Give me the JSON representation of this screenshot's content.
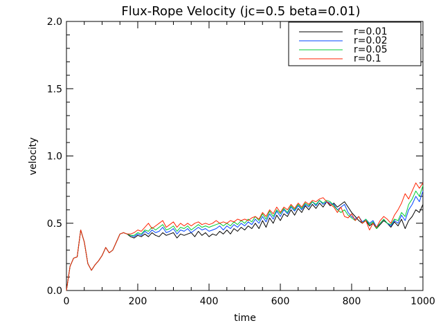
{
  "chart_data": {
    "type": "line",
    "title": "Flux-Rope Velocity (jc=0.5 beta=0.01)",
    "xlabel": "time",
    "ylabel": "velocity",
    "xlim": [
      0,
      1000
    ],
    "ylim": [
      0,
      2
    ],
    "xticks": [
      0,
      200,
      400,
      600,
      800,
      1000
    ],
    "xtick_labels": [
      "0",
      "200",
      "400",
      "600",
      "800",
      "1000"
    ],
    "yticks": [
      0,
      0.5,
      1,
      1.5,
      2
    ],
    "ytick_labels": [
      "0.0",
      "0.5",
      "1.0",
      "1.5",
      "2.0"
    ],
    "grid": false,
    "legend_position": "top-right",
    "x": [
      0,
      10,
      20,
      30,
      40,
      50,
      60,
      70,
      80,
      90,
      100,
      110,
      120,
      130,
      140,
      150,
      160,
      170,
      180,
      190,
      200,
      210,
      220,
      230,
      240,
      250,
      260,
      270,
      280,
      290,
      300,
      310,
      320,
      330,
      340,
      350,
      360,
      370,
      380,
      390,
      400,
      410,
      420,
      430,
      440,
      450,
      460,
      470,
      480,
      490,
      500,
      510,
      520,
      530,
      540,
      550,
      560,
      570,
      580,
      590,
      600,
      610,
      620,
      630,
      640,
      650,
      660,
      670,
      680,
      690,
      700,
      710,
      720,
      730,
      740,
      750,
      760,
      770,
      780,
      790,
      800,
      810,
      820,
      830,
      840,
      850,
      860,
      870,
      880,
      890,
      900,
      910,
      920,
      930,
      940,
      950,
      960,
      970,
      980,
      990,
      1000
    ],
    "series": [
      {
        "name": "r=0.01",
        "color": "#000000",
        "values": [
          0.0,
          0.18,
          0.24,
          0.25,
          0.45,
          0.36,
          0.2,
          0.15,
          0.19,
          0.22,
          0.26,
          0.32,
          0.28,
          0.3,
          0.36,
          0.42,
          0.43,
          0.42,
          0.4,
          0.39,
          0.41,
          0.4,
          0.42,
          0.4,
          0.43,
          0.41,
          0.4,
          0.43,
          0.41,
          0.42,
          0.43,
          0.39,
          0.42,
          0.41,
          0.42,
          0.43,
          0.4,
          0.44,
          0.41,
          0.43,
          0.4,
          0.42,
          0.41,
          0.44,
          0.42,
          0.45,
          0.42,
          0.46,
          0.44,
          0.47,
          0.45,
          0.48,
          0.46,
          0.5,
          0.46,
          0.52,
          0.47,
          0.54,
          0.5,
          0.56,
          0.52,
          0.57,
          0.55,
          0.6,
          0.56,
          0.61,
          0.58,
          0.63,
          0.6,
          0.64,
          0.61,
          0.65,
          0.62,
          0.66,
          0.63,
          0.65,
          0.62,
          0.64,
          0.66,
          0.62,
          0.58,
          0.55,
          0.52,
          0.5,
          0.52,
          0.48,
          0.5,
          0.46,
          0.49,
          0.52,
          0.5,
          0.47,
          0.51,
          0.48,
          0.53,
          0.46,
          0.52,
          0.55,
          0.6,
          0.58,
          0.64
        ]
      },
      {
        "name": "r=0.02",
        "color": "#0044ff",
        "values": [
          0.0,
          0.18,
          0.24,
          0.25,
          0.45,
          0.36,
          0.2,
          0.15,
          0.19,
          0.22,
          0.26,
          0.32,
          0.28,
          0.3,
          0.36,
          0.42,
          0.43,
          0.42,
          0.41,
          0.4,
          0.42,
          0.41,
          0.44,
          0.42,
          0.45,
          0.43,
          0.44,
          0.47,
          0.43,
          0.44,
          0.46,
          0.42,
          0.45,
          0.44,
          0.46,
          0.43,
          0.45,
          0.47,
          0.45,
          0.46,
          0.44,
          0.45,
          0.46,
          0.48,
          0.45,
          0.48,
          0.46,
          0.49,
          0.47,
          0.5,
          0.48,
          0.51,
          0.49,
          0.53,
          0.5,
          0.55,
          0.51,
          0.57,
          0.53,
          0.59,
          0.55,
          0.6,
          0.57,
          0.62,
          0.59,
          0.63,
          0.6,
          0.64,
          0.62,
          0.66,
          0.63,
          0.67,
          0.64,
          0.66,
          0.65,
          0.64,
          0.6,
          0.62,
          0.64,
          0.58,
          0.55,
          0.53,
          0.55,
          0.51,
          0.53,
          0.5,
          0.52,
          0.47,
          0.5,
          0.53,
          0.5,
          0.48,
          0.52,
          0.5,
          0.56,
          0.52,
          0.6,
          0.64,
          0.7,
          0.66,
          0.74
        ]
      },
      {
        "name": "r=0.05",
        "color": "#00cc33",
        "values": [
          0.0,
          0.18,
          0.24,
          0.25,
          0.45,
          0.36,
          0.2,
          0.15,
          0.19,
          0.22,
          0.26,
          0.32,
          0.28,
          0.3,
          0.36,
          0.42,
          0.43,
          0.42,
          0.41,
          0.41,
          0.43,
          0.42,
          0.45,
          0.44,
          0.47,
          0.45,
          0.47,
          0.49,
          0.45,
          0.46,
          0.48,
          0.44,
          0.47,
          0.46,
          0.48,
          0.45,
          0.47,
          0.49,
          0.47,
          0.48,
          0.47,
          0.48,
          0.49,
          0.5,
          0.48,
          0.5,
          0.48,
          0.51,
          0.49,
          0.52,
          0.5,
          0.53,
          0.51,
          0.55,
          0.52,
          0.57,
          0.53,
          0.59,
          0.55,
          0.6,
          0.57,
          0.61,
          0.58,
          0.63,
          0.6,
          0.64,
          0.61,
          0.65,
          0.63,
          0.66,
          0.64,
          0.67,
          0.65,
          0.67,
          0.66,
          0.63,
          0.6,
          0.58,
          0.6,
          0.56,
          0.54,
          0.52,
          0.55,
          0.5,
          0.53,
          0.49,
          0.51,
          0.46,
          0.5,
          0.53,
          0.5,
          0.49,
          0.53,
          0.52,
          0.58,
          0.55,
          0.64,
          0.68,
          0.74,
          0.7,
          0.78
        ]
      },
      {
        "name": "r=0.1",
        "color": "#ff2200",
        "values": [
          0.0,
          0.18,
          0.24,
          0.25,
          0.45,
          0.36,
          0.2,
          0.15,
          0.19,
          0.22,
          0.26,
          0.32,
          0.28,
          0.3,
          0.36,
          0.42,
          0.43,
          0.42,
          0.42,
          0.43,
          0.45,
          0.44,
          0.47,
          0.5,
          0.46,
          0.48,
          0.5,
          0.52,
          0.47,
          0.49,
          0.51,
          0.47,
          0.5,
          0.48,
          0.5,
          0.48,
          0.5,
          0.51,
          0.49,
          0.5,
          0.49,
          0.5,
          0.52,
          0.5,
          0.51,
          0.5,
          0.52,
          0.51,
          0.53,
          0.52,
          0.53,
          0.52,
          0.54,
          0.55,
          0.53,
          0.58,
          0.55,
          0.6,
          0.57,
          0.62,
          0.58,
          0.62,
          0.6,
          0.64,
          0.61,
          0.65,
          0.62,
          0.66,
          0.64,
          0.67,
          0.66,
          0.68,
          0.69,
          0.66,
          0.64,
          0.62,
          0.58,
          0.62,
          0.55,
          0.54,
          0.57,
          0.52,
          0.55,
          0.5,
          0.52,
          0.45,
          0.5,
          0.47,
          0.52,
          0.55,
          0.53,
          0.5,
          0.56,
          0.6,
          0.65,
          0.72,
          0.68,
          0.74,
          0.8,
          0.76,
          0.8
        ]
      }
    ]
  }
}
